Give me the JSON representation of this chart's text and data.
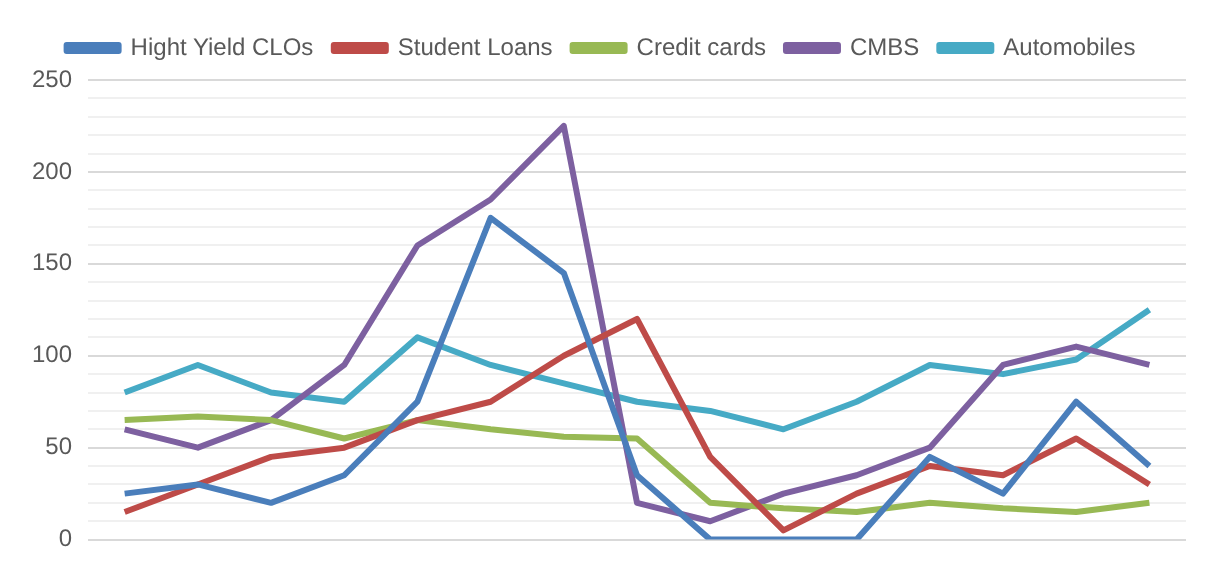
{
  "chart_data": {
    "type": "line",
    "categories": [
      null,
      null,
      null,
      null,
      null,
      null,
      null,
      null,
      null,
      null,
      null,
      null,
      null,
      null,
      null
    ],
    "series": [
      {
        "name": "Hight Yield CLOs",
        "color": "#4a7ebb",
        "values": [
          25,
          30,
          20,
          35,
          75,
          175,
          145,
          35,
          0,
          0,
          0,
          45,
          25,
          75,
          40
        ]
      },
      {
        "name": "Student Loans",
        "color": "#be4b48",
        "values": [
          15,
          30,
          45,
          50,
          65,
          75,
          100,
          120,
          45,
          5,
          25,
          40,
          35,
          55,
          30
        ]
      },
      {
        "name": "Credit cards",
        "color": "#98b954",
        "values": [
          65,
          67,
          65,
          55,
          65,
          60,
          56,
          55,
          20,
          17,
          15,
          20,
          17,
          15,
          20
        ]
      },
      {
        "name": "CMBS",
        "color": "#7d60a0",
        "values": [
          60,
          50,
          65,
          95,
          160,
          185,
          225,
          20,
          10,
          25,
          35,
          50,
          95,
          105,
          95
        ]
      },
      {
        "name": "Automobiles",
        "color": "#46aac5",
        "values": [
          80,
          95,
          80,
          75,
          110,
          95,
          85,
          75,
          70,
          60,
          75,
          95,
          90,
          98,
          125
        ]
      }
    ],
    "ylim": [
      0,
      250
    ],
    "yticks": [
      0,
      {
        "value": 10,
        "label": null
      },
      {
        "value": 20,
        "label": null
      },
      {
        "value": 30,
        "label": null
      },
      {
        "value": 40,
        "label": null
      },
      50,
      {
        "value": 60,
        "label": null
      },
      {
        "value": 70,
        "label": null
      },
      {
        "value": 80,
        "label": null
      },
      {
        "value": 90,
        "label": null
      },
      100,
      {
        "value": 110,
        "label": null
      },
      {
        "value": 120,
        "label": null
      },
      {
        "value": 130,
        "label": null
      },
      {
        "value": 140,
        "label": null
      },
      150,
      {
        "value": 160,
        "label": null
      },
      {
        "value": 170,
        "label": null
      },
      {
        "value": 180,
        "label": null
      },
      {
        "value": 190,
        "label": null
      },
      200,
      {
        "value": 210,
        "label": null
      },
      {
        "value": 220,
        "label": null
      },
      {
        "value": 230,
        "label": null
      },
      {
        "value": 240,
        "label": null
      },
      250
    ],
    "grid": "y",
    "legend": "top",
    "marker": "none",
    "line_style": "solid"
  }
}
